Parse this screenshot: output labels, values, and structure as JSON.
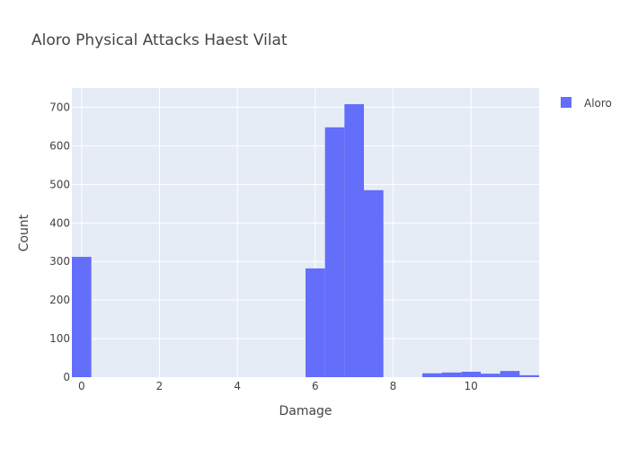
{
  "chart_data": {
    "type": "bar",
    "title": "Aloro Physical Attacks Haest Vilat",
    "xlabel": "Damage",
    "ylabel": "Count",
    "xlim": [
      -0.25,
      11.75
    ],
    "ylim": [
      0,
      750
    ],
    "grid": true,
    "legend_position": "top-right",
    "bin_width": 0.5,
    "x_ticks": [
      0,
      2,
      4,
      6,
      8,
      10
    ],
    "y_ticks": [
      0,
      100,
      200,
      300,
      400,
      500,
      600,
      700
    ],
    "series": [
      {
        "name": "Aloro",
        "color": "#636efa",
        "bins": [
          {
            "x0": -0.25,
            "x1": 0.25,
            "count": 312
          },
          {
            "x0": 5.75,
            "x1": 6.25,
            "count": 282
          },
          {
            "x0": 6.25,
            "x1": 6.75,
            "count": 648
          },
          {
            "x0": 6.75,
            "x1": 7.25,
            "count": 708
          },
          {
            "x0": 7.25,
            "x1": 7.75,
            "count": 485
          },
          {
            "x0": 8.75,
            "x1": 9.25,
            "count": 10
          },
          {
            "x0": 9.25,
            "x1": 9.75,
            "count": 12
          },
          {
            "x0": 9.75,
            "x1": 10.25,
            "count": 14
          },
          {
            "x0": 10.25,
            "x1": 10.75,
            "count": 9
          },
          {
            "x0": 10.75,
            "x1": 11.25,
            "count": 16
          },
          {
            "x0": 11.25,
            "x1": 11.75,
            "count": 5
          }
        ]
      }
    ]
  },
  "colors": {
    "plot_background": "#e5ecf6",
    "gridline": "#ffffff",
    "text": "#444444"
  }
}
